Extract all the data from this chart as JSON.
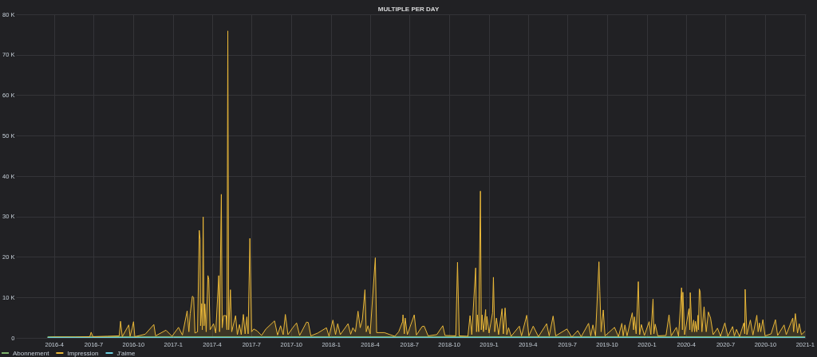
{
  "chart_data": {
    "type": "area",
    "title": "MULTIPLE PER DAY",
    "grid": true,
    "legend": "bottom left",
    "marker": "none",
    "xlim": [
      "2016-01-04",
      "2021-01-03"
    ],
    "xticks": [
      {
        "value": "2016-04-01",
        "label": "2016-4"
      },
      {
        "value": "2016-07-01",
        "label": "2016-7"
      },
      {
        "value": "2016-10-01",
        "label": "2016-10"
      },
      {
        "value": "2017-01-01",
        "label": "2017-1"
      },
      {
        "value": "2017-04-01",
        "label": "2017-4"
      },
      {
        "value": "2017-07-01",
        "label": "2017-7"
      },
      {
        "value": "2017-10-01",
        "label": "2017-10"
      },
      {
        "value": "2018-01-01",
        "label": "2018-1"
      },
      {
        "value": "2018-04-01",
        "label": "2018-4"
      },
      {
        "value": "2018-07-01",
        "label": "2018-7"
      },
      {
        "value": "2018-10-01",
        "label": "2018-10"
      },
      {
        "value": "2019-01-01",
        "label": "2019-1"
      },
      {
        "value": "2019-04-01",
        "label": "2019-4"
      },
      {
        "value": "2019-07-01",
        "label": "2019-7"
      },
      {
        "value": "2019-10-01",
        "label": "2019-10"
      },
      {
        "value": "2020-01-01",
        "label": "2020-1"
      },
      {
        "value": "2020-04-01",
        "label": "2020-4"
      },
      {
        "value": "2020-07-01",
        "label": "2020-7"
      },
      {
        "value": "2020-10-01",
        "label": "2020-10"
      },
      {
        "value": "2021-01-01",
        "label": "2021-1"
      }
    ],
    "ylim": [
      0,
      80000
    ],
    "yticks": [
      0,
      {
        "value": 10000,
        "label": "10 K"
      },
      {
        "value": 20000,
        "label": "20 K"
      },
      {
        "value": 30000,
        "label": "30 K"
      },
      {
        "value": 40000,
        "label": "40 K"
      },
      {
        "value": 50000,
        "label": "50 K"
      },
      {
        "value": 60000,
        "label": "60 K"
      },
      {
        "value": 70000,
        "label": "70 K"
      },
      {
        "value": 80000,
        "label": "80 K"
      }
    ],
    "series": [
      {
        "name": "Abonnement",
        "color": "#7eb26d",
        "x": [
          "2016-03-17",
          "2017-01-01",
          "2018-01-01",
          "2019-01-01",
          "2020-01-01",
          "2020-12-31"
        ],
        "values": [
          300,
          300,
          300,
          300,
          300,
          300
        ]
      },
      {
        "name": "Impression",
        "color": "#eab839",
        "x": [
          "2016-03-17",
          "2016-04-01",
          "2016-05-20",
          "2016-06-22",
          "2016-06-25",
          "2016-06-29",
          "2016-08-01",
          "2016-08-29",
          "2016-09-01",
          "2016-09-05",
          "2016-09-20",
          "2016-09-23",
          "2016-09-28",
          "2016-10-01",
          "2016-10-04",
          "2016-10-28",
          "2016-11-17",
          "2016-11-21",
          "2016-12-15",
          "2016-12-29",
          "2017-01-13",
          "2017-01-22",
          "2017-02-02",
          "2017-02-06",
          "2017-02-09",
          "2017-02-14",
          "2017-02-17",
          "2017-02-20",
          "2017-02-26",
          "2017-03-02",
          "2017-03-04",
          "2017-03-05",
          "2017-03-08",
          "2017-03-09",
          "2017-03-11",
          "2017-03-13",
          "2017-03-15",
          "2017-03-18",
          "2017-03-22",
          "2017-03-24",
          "2017-03-27",
          "2017-04-04",
          "2017-04-09",
          "2017-04-16",
          "2017-04-18",
          "2017-04-22",
          "2017-04-24",
          "2017-04-27",
          "2017-05-03",
          "2017-05-05",
          "2017-05-07",
          "2017-05-09",
          "2017-05-13",
          "2017-05-16",
          "2017-05-25",
          "2017-05-29",
          "2017-06-03",
          "2017-06-07",
          "2017-06-12",
          "2017-06-16",
          "2017-06-20",
          "2017-06-23",
          "2017-06-27",
          "2017-07-01",
          "2017-07-06",
          "2017-07-14",
          "2017-07-24",
          "2017-08-03",
          "2017-08-23",
          "2017-08-30",
          "2017-09-06",
          "2017-09-12",
          "2017-09-17",
          "2017-09-23",
          "2017-10-04",
          "2017-10-13",
          "2017-10-20",
          "2017-11-05",
          "2017-11-09",
          "2017-11-15",
          "2017-12-01",
          "2017-12-21",
          "2017-12-27",
          "2018-01-05",
          "2018-01-11",
          "2018-01-16",
          "2018-01-22",
          "2018-02-09",
          "2018-02-15",
          "2018-02-20",
          "2018-02-26",
          "2018-03-04",
          "2018-03-09",
          "2018-03-14",
          "2018-03-20",
          "2018-03-23",
          "2018-03-27",
          "2018-04-01",
          "2018-04-13",
          "2018-04-16",
          "2018-05-04",
          "2018-05-17",
          "2018-05-28",
          "2018-06-06",
          "2018-06-15",
          "2018-06-16",
          "2018-06-19",
          "2018-06-21",
          "2018-06-26",
          "2018-07-12",
          "2018-07-17",
          "2018-07-30",
          "2018-08-04",
          "2018-08-13",
          "2018-09-02",
          "2018-09-16",
          "2018-09-21",
          "2018-10-16",
          "2018-10-20",
          "2018-10-24",
          "2018-11-13",
          "2018-11-18",
          "2018-11-22",
          "2018-12-01",
          "2018-12-03",
          "2018-12-05",
          "2018-12-08",
          "2018-12-12",
          "2018-12-14",
          "2018-12-16",
          "2018-12-19",
          "2018-12-24",
          "2018-12-25",
          "2018-12-27",
          "2019-01-01",
          "2019-01-09",
          "2019-01-11",
          "2019-01-14",
          "2019-01-18",
          "2019-01-23",
          "2019-01-31",
          "2019-02-03",
          "2019-02-07",
          "2019-02-11",
          "2019-02-15",
          "2019-02-21",
          "2019-03-12",
          "2019-03-17",
          "2019-03-29",
          "2019-04-03",
          "2019-04-13",
          "2019-04-25",
          "2019-05-14",
          "2019-05-20",
          "2019-05-29",
          "2019-06-04",
          "2019-06-30",
          "2019-07-11",
          "2019-07-25",
          "2019-08-02",
          "2019-08-19",
          "2019-08-24",
          "2019-08-29",
          "2019-09-04",
          "2019-09-12",
          "2019-09-14",
          "2019-09-17",
          "2019-09-22",
          "2019-09-26",
          "2019-10-18",
          "2019-10-27",
          "2019-11-04",
          "2019-11-07",
          "2019-11-11",
          "2019-11-16",
          "2019-11-28",
          "2019-12-01",
          "2019-12-03",
          "2019-12-07",
          "2019-12-12",
          "2019-12-15",
          "2019-12-19",
          "2019-12-26",
          "2020-01-06",
          "2020-01-10",
          "2020-01-15",
          "2020-01-17",
          "2020-01-20",
          "2020-01-26",
          "2020-02-14",
          "2020-02-21",
          "2020-02-26",
          "2020-03-09",
          "2020-03-14",
          "2020-03-21",
          "2020-03-23",
          "2020-03-24",
          "2020-03-28",
          "2020-04-07",
          "2020-04-09",
          "2020-04-10",
          "2020-04-14",
          "2020-04-18",
          "2020-04-20",
          "2020-04-22",
          "2020-04-25",
          "2020-04-28",
          "2020-04-29",
          "2020-05-01",
          "2020-05-03",
          "2020-05-07",
          "2020-05-12",
          "2020-05-17",
          "2020-05-22",
          "2020-05-27",
          "2020-06-02",
          "2020-06-12",
          "2020-06-19",
          "2020-06-29",
          "2020-07-06",
          "2020-07-17",
          "2020-07-21",
          "2020-07-26",
          "2020-08-02",
          "2020-08-12",
          "2020-08-14",
          "2020-08-15",
          "2020-08-19",
          "2020-08-27",
          "2020-09-02",
          "2020-09-11",
          "2020-09-14",
          "2020-09-17",
          "2020-09-20",
          "2020-09-25",
          "2020-09-30",
          "2020-10-14",
          "2020-10-24",
          "2020-10-29",
          "2020-11-13",
          "2020-11-18",
          "2020-12-03",
          "2020-12-05",
          "2020-12-09",
          "2020-12-14",
          "2020-12-18",
          "2020-12-23",
          "2020-12-31"
        ],
        "values": [
          100,
          200,
          200,
          300,
          1400,
          300,
          400,
          500,
          4100,
          300,
          3200,
          400,
          2500,
          4000,
          300,
          900,
          3300,
          500,
          1900,
          400,
          2600,
          700,
          6700,
          1500,
          6000,
          10300,
          10000,
          1200,
          1500,
          26600,
          24300,
          3000,
          8500,
          2000,
          29900,
          3000,
          8400,
          1500,
          15400,
          14500,
          2000,
          3500,
          1200,
          15400,
          1500,
          35500,
          2500,
          5500,
          5500,
          2000,
          75900,
          2000,
          11900,
          1500,
          5500,
          800,
          3300,
          800,
          5800,
          1000,
          5200,
          1000,
          24600,
          1500,
          2200,
          1700,
          600,
          2200,
          4200,
          700,
          3000,
          800,
          5800,
          800,
          2500,
          3700,
          600,
          3900,
          3800,
          500,
          1200,
          2500,
          400,
          4400,
          800,
          3500,
          800,
          3500,
          900,
          2500,
          1500,
          6600,
          2500,
          4500,
          11900,
          1500,
          3000,
          1000,
          19800,
          1300,
          1300,
          800,
          400,
          1500,
          4000,
          5700,
          1000,
          4900,
          800,
          5700,
          700,
          2800,
          2900,
          500,
          800,
          3000,
          600,
          500,
          18700,
          500,
          400,
          5500,
          800,
          17300,
          1500,
          5700,
          1500,
          36300,
          2000,
          5700,
          1500,
          7000,
          2000,
          5300,
          1200,
          6200,
          15000,
          1500,
          4900,
          800,
          7200,
          1000,
          7400,
          800,
          2500,
          400,
          2900,
          500,
          5600,
          500,
          2900,
          300,
          3500,
          500,
          5400,
          500,
          2200,
          200,
          1800,
          300,
          3600,
          500,
          3200,
          500,
          18800,
          11500,
          1500,
          6900,
          500,
          2600,
          300,
          3600,
          500,
          3200,
          500,
          6200,
          2000,
          5200,
          1000,
          13900,
          800,
          3300,
          600,
          4000,
          800,
          9600,
          1000,
          3400,
          500,
          600,
          5700,
          500,
          2600,
          400,
          12400,
          2000,
          11300,
          800,
          7200,
          2000,
          11200,
          1500,
          4400,
          1500,
          4100,
          1500,
          5600,
          2000,
          12100,
          11400,
          1500,
          7700,
          1500,
          6400,
          4900,
          800,
          2400,
          400,
          3700,
          400,
          2800,
          500,
          2100,
          300,
          3700,
          1000,
          12000,
          800,
          4400,
          700,
          5600,
          1500,
          3700,
          1500,
          4500,
          500,
          1000,
          4500,
          600,
          3200,
          800,
          4900,
          1500,
          6000,
          1200,
          3500,
          800,
          1600
        ]
      },
      {
        "name": "J'aime",
        "color": "#6ed0e0",
        "x": [
          "2016-03-17",
          "2017-01-01",
          "2018-01-01",
          "2019-01-01",
          "2020-01-01",
          "2020-12-31"
        ],
        "values": [
          100,
          100,
          100,
          100,
          100,
          100
        ]
      }
    ]
  }
}
